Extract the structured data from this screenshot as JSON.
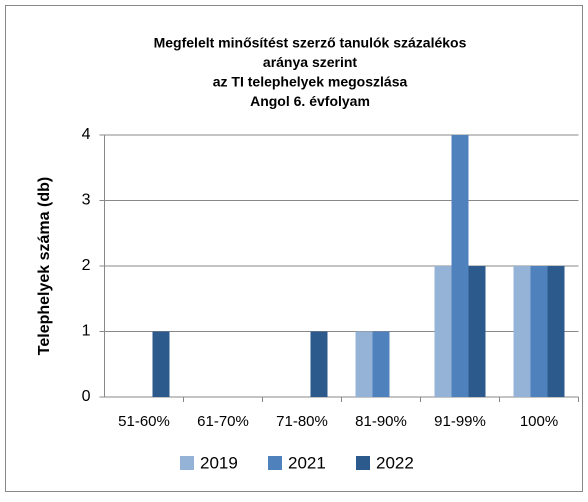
{
  "chart_data": {
    "type": "bar",
    "title": [
      "Megfelelt minősítést szerző tanulók százalékos",
      "aránya szerint",
      "az TI telephelyek megoszlása",
      "Angol 6. évfolyam"
    ],
    "y_label": "Telephelyek száma (db)",
    "categories": [
      "51-60%",
      "61-70%",
      "71-80%",
      "81-90%",
      "91-99%",
      "100%"
    ],
    "series": [
      {
        "name": "2019",
        "color": "#95b3d7",
        "values": [
          0,
          0,
          0,
          1,
          2,
          2
        ]
      },
      {
        "name": "2021",
        "color": "#4f81bd",
        "values": [
          0,
          0,
          0,
          1,
          4,
          2
        ]
      },
      {
        "name": "2022",
        "color": "#2c5a8c",
        "values": [
          1,
          0,
          1,
          0,
          2,
          2
        ]
      }
    ],
    "ylim": [
      0,
      4
    ],
    "yticks": [
      0,
      1,
      2,
      3,
      4
    ],
    "grid": true,
    "legend": "bottom"
  }
}
